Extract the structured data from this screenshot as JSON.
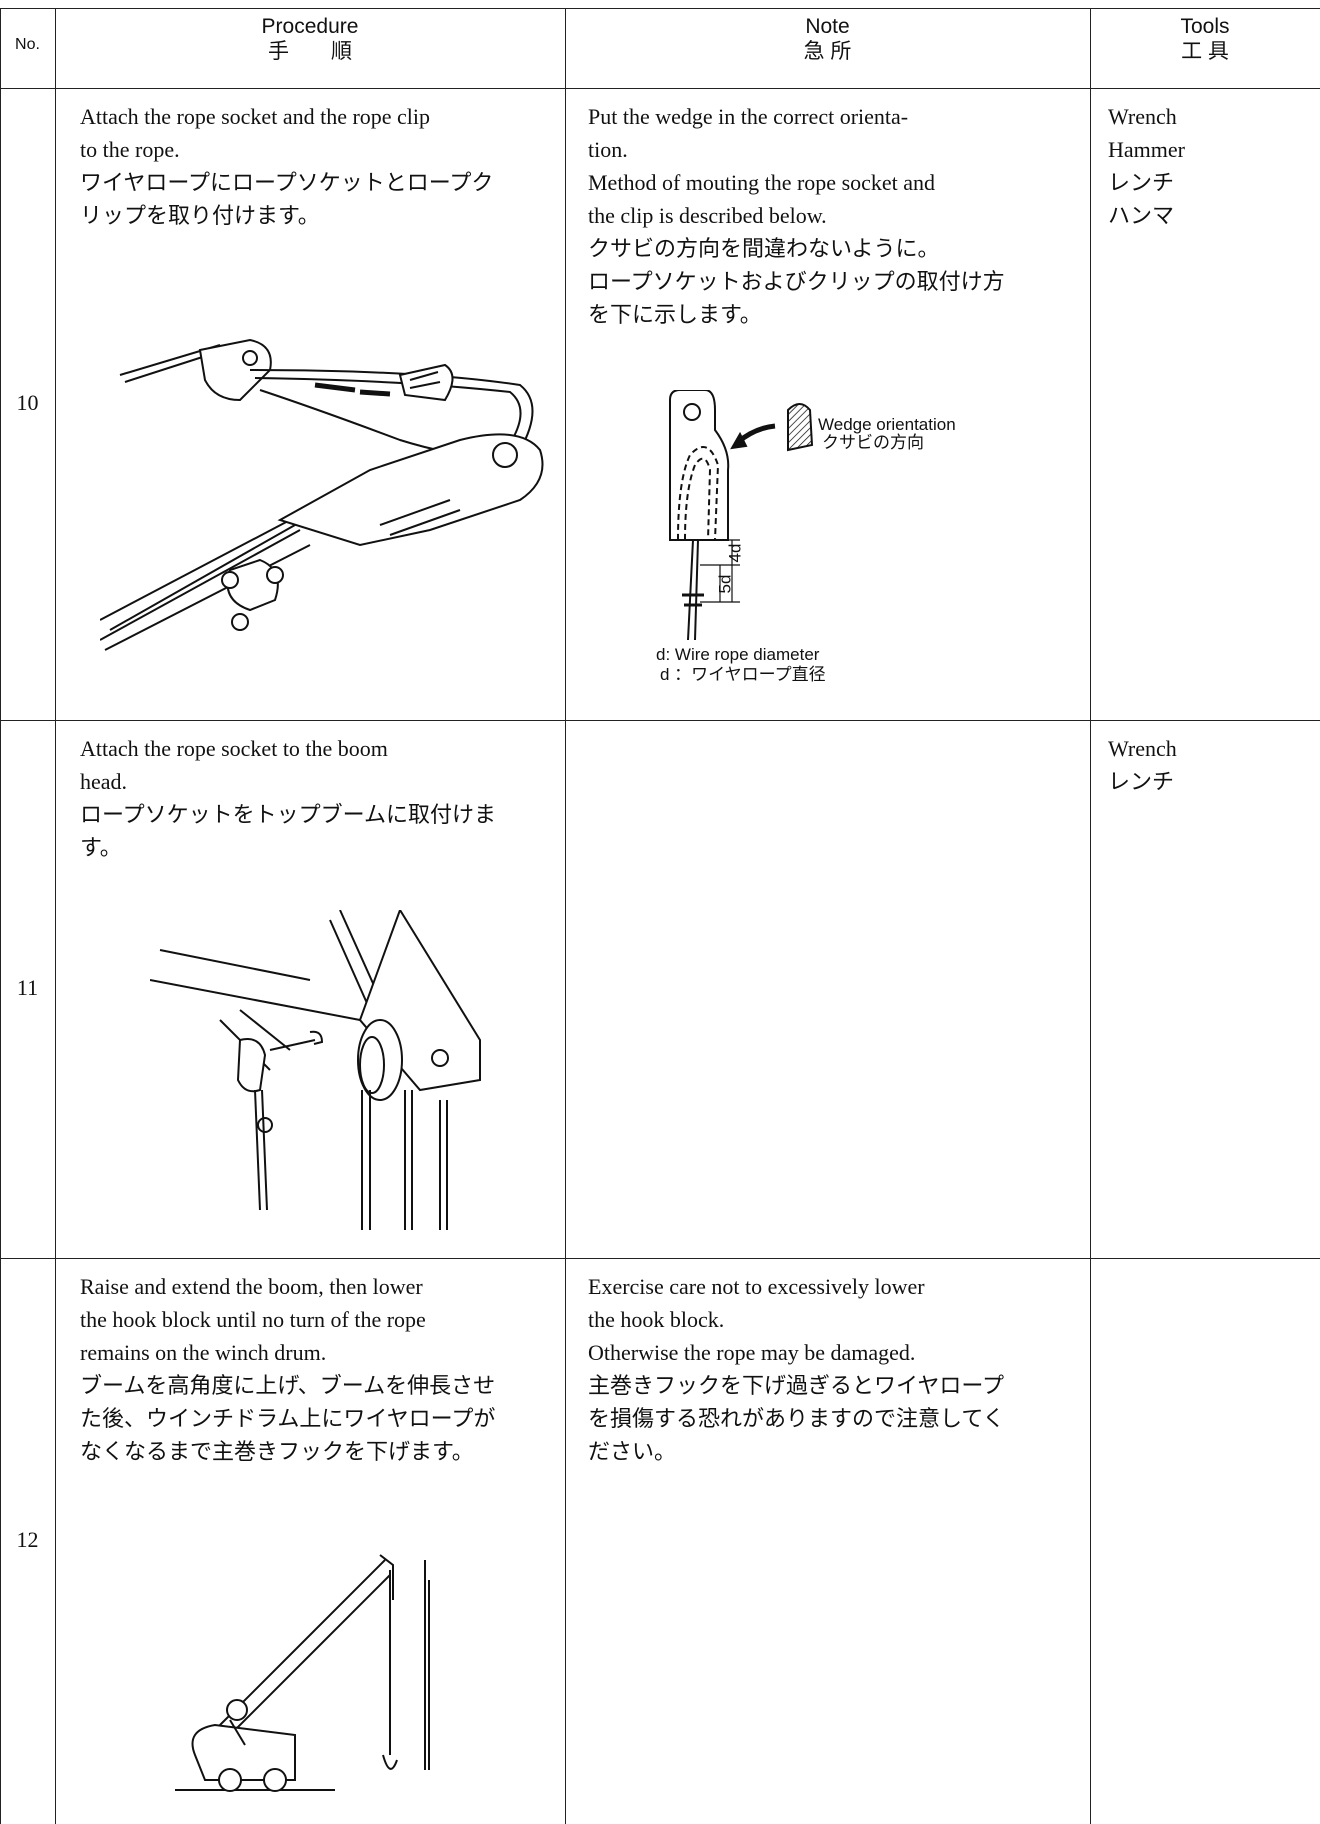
{
  "header": {
    "no": "No.",
    "procedure": {
      "en": "Procedure",
      "ja": "手　　順"
    },
    "note": {
      "en": "Note",
      "ja": "急 所"
    },
    "tools": {
      "en": "Tools",
      "ja": "工 具"
    }
  },
  "rows": [
    {
      "no": "10",
      "procedure": [
        "Attach the rope socket and the rope clip",
        "to the rope.",
        "ワイヤロープにロープソケットとロープク",
        "リップを取り付けます。"
      ],
      "note": [
        "Put the wedge in the correct orienta-",
        "tion.",
        "Method of mouting the rope socket and",
        "the clip is described below.",
        "クサビの方向を間違わないように。",
        "ロープソケットおよびクリップの取付け方",
        "を下に示します。"
      ],
      "tools": [
        "Wrench",
        "Hammer",
        "レンチ",
        "ハンマ"
      ],
      "figure_labels": {
        "wedge_en": "Wedge orientation",
        "wedge_ja": "クサビの方向",
        "four_d": "4d",
        "five_d": "5d",
        "diameter_en": "d: Wire rope diameter",
        "diameter_ja": "d ：ワイヤロープ直径"
      }
    },
    {
      "no": "11",
      "procedure": [
        "Attach the rope socket to the boom",
        "head.",
        "ロープソケットをトップブームに取付けま",
        "す。"
      ],
      "note": [],
      "tools": [
        "Wrench",
        "レンチ"
      ]
    },
    {
      "no": "12",
      "procedure": [
        "Raise and extend the boom, then lower",
        "the hook block until no turn of the rope",
        "remains on the winch drum.",
        "ブームを高角度に上げ、ブームを伸長させ",
        "た後、ウインチドラム上にワイヤロープが",
        "なくなるまで主巻きフックを下げます。"
      ],
      "note": [
        "Exercise care not to excessively lower",
        "the hook block.",
        "Otherwise the rope may be damaged.",
        "主巻きフックを下げ過ぎるとワイヤロープ",
        "を損傷する恐れがありますので注意してく",
        "ださい。"
      ],
      "tools": []
    }
  ]
}
